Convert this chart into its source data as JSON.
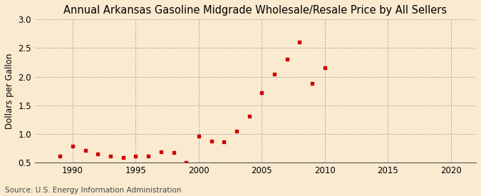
{
  "title": "Annual Arkansas Gasoline Midgrade Wholesale/Resale Price by All Sellers",
  "ylabel": "Dollars per Gallon",
  "source": "Source: U.S. Energy Information Administration",
  "background_color": "#faebd0",
  "marker_color": "#cc0000",
  "years": [
    1989,
    1990,
    1991,
    1992,
    1993,
    1994,
    1995,
    1996,
    1997,
    1998,
    1999,
    2000,
    2001,
    2002,
    2003,
    2004,
    2005,
    2006,
    2007,
    2008,
    2009,
    2010
  ],
  "values": [
    0.62,
    0.79,
    0.72,
    0.65,
    0.61,
    0.59,
    0.61,
    0.62,
    0.69,
    0.68,
    0.5,
    0.96,
    0.88,
    0.86,
    1.05,
    1.31,
    1.72,
    2.05,
    2.31,
    2.6,
    1.88,
    2.16
  ],
  "xlim": [
    1987,
    2022
  ],
  "ylim": [
    0.5,
    3.0
  ],
  "xticks": [
    1990,
    1995,
    2000,
    2005,
    2010,
    2015,
    2020
  ],
  "yticks": [
    0.5,
    1.0,
    1.5,
    2.0,
    2.5,
    3.0
  ],
  "title_fontsize": 10.5,
  "label_fontsize": 8.5,
  "tick_fontsize": 8.5,
  "source_fontsize": 7.5,
  "grid_color": "#aaaaaa",
  "grid_linestyle": "--",
  "grid_linewidth": 0.6
}
